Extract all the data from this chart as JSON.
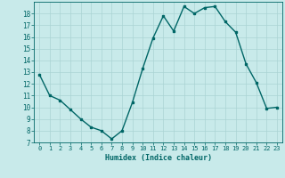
{
  "x": [
    0,
    1,
    2,
    3,
    4,
    5,
    6,
    7,
    8,
    9,
    10,
    11,
    12,
    13,
    14,
    15,
    16,
    17,
    18,
    19,
    20,
    21,
    22,
    23
  ],
  "y": [
    12.8,
    11.0,
    10.6,
    9.8,
    9.0,
    8.3,
    8.0,
    7.3,
    8.0,
    10.4,
    13.3,
    15.9,
    17.8,
    16.5,
    18.6,
    18.0,
    18.5,
    18.6,
    17.3,
    16.4,
    13.7,
    12.1,
    9.9,
    10.0
  ],
  "xlim": [
    -0.5,
    23.5
  ],
  "ylim": [
    7,
    19
  ],
  "xticks": [
    0,
    1,
    2,
    3,
    4,
    5,
    6,
    7,
    8,
    9,
    10,
    11,
    12,
    13,
    14,
    15,
    16,
    17,
    18,
    19,
    20,
    21,
    22,
    23
  ],
  "yticks": [
    7,
    8,
    9,
    10,
    11,
    12,
    13,
    14,
    15,
    16,
    17,
    18
  ],
  "xlabel": "Humidex (Indice chaleur)",
  "line_color": "#006666",
  "bg_color": "#c8eaea",
  "grid_color": "#aad4d4",
  "tick_color": "#006666",
  "label_color": "#006666"
}
